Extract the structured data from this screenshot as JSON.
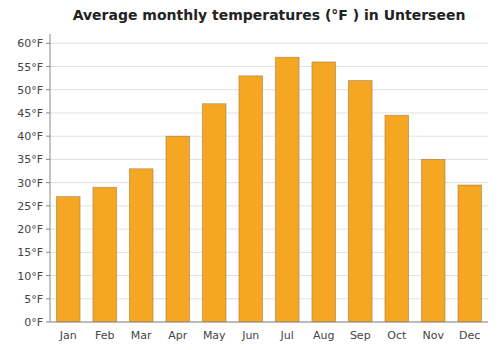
{
  "chart_data": {
    "type": "bar",
    "title": "Average monthly temperatures (°F ) in Unterseen",
    "categories": [
      "Jan",
      "Feb",
      "Mar",
      "Apr",
      "May",
      "Jun",
      "Jul",
      "Aug",
      "Sep",
      "Oct",
      "Nov",
      "Dec"
    ],
    "values": [
      27,
      29,
      33,
      40,
      47,
      53,
      57,
      56,
      52,
      44.5,
      35,
      29.5
    ],
    "color": "#F5A623",
    "ylim": [
      0,
      62
    ],
    "yticks": [
      {
        "value": 0,
        "label": "0°F"
      },
      {
        "value": 5,
        "label": "5°F"
      },
      {
        "value": 10,
        "label": "10°F"
      },
      {
        "value": 15,
        "label": "15°F"
      },
      {
        "value": 20,
        "label": "20°F"
      },
      {
        "value": 25,
        "label": "25°F"
      },
      {
        "value": 30,
        "label": "30°F"
      },
      {
        "value": 35,
        "label": "35°F"
      },
      {
        "value": 40,
        "label": "40°F"
      },
      {
        "value": 45,
        "label": "45°F"
      },
      {
        "value": 50,
        "label": "50°F"
      },
      {
        "value": 55,
        "label": "55°F"
      },
      {
        "value": 60,
        "label": "60°F"
      }
    ],
    "grid": true
  }
}
